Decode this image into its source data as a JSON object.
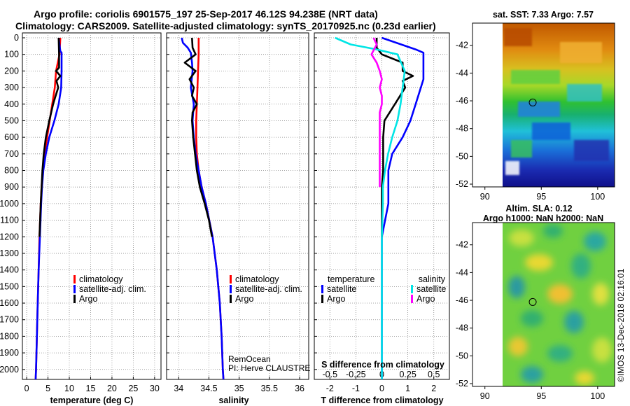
{
  "title_line1": "Argo profile: coriolis 6901575_197 25-Sep-2017 46.12S 94.238E (NRT data)",
  "title_line2": "Climatology: CARS2009. Satellite-adjusted climatology: synTS_20170925.nc (0.23d earlier)",
  "credit": "RemOcean",
  "pi_line": "PI: Herve CLAUSTRE",
  "watermark": "©IMOS 13-Dec-2018 02:16:01",
  "colors": {
    "climatology": "#ff0000",
    "satellite": "#0000ff",
    "argo": "#000000",
    "sat_salinity": "#00e5e5",
    "argo_salinity": "#ff00ff"
  },
  "depth_axis": {
    "ticks": [
      "0",
      "100",
      "200",
      "300",
      "400",
      "500",
      "600",
      "700",
      "800",
      "900",
      "1000",
      "1100",
      "1200",
      "1300",
      "1400",
      "1500",
      "1600",
      "1700",
      "1800",
      "1900",
      "2000"
    ],
    "range": [
      0,
      2060
    ]
  },
  "chart_data": [
    {
      "type": "line",
      "panel": "temperature",
      "xlabel": "temperature (deg C)",
      "ylabel": "depth",
      "xlim": [
        -1,
        31.5
      ],
      "xticks": [
        "0",
        "5",
        "10",
        "15",
        "20",
        "25",
        "30"
      ],
      "legend": {
        "climatology": "climatology",
        "satellite": "satellite-adj. clim.",
        "argo": "Argo"
      },
      "series": [
        {
          "name": "climatology",
          "depth": [
            0,
            100,
            200,
            300,
            400,
            500,
            600,
            700,
            800,
            900,
            1000,
            1200,
            1400,
            1600,
            1800,
            2000,
            2060
          ],
          "values": [
            7.9,
            7.7,
            6.9,
            6.6,
            6.0,
            5.4,
            4.8,
            4.2,
            3.8,
            3.5,
            3.3,
            3.0,
            2.8,
            2.6,
            2.4,
            2.2,
            2.1
          ]
        },
        {
          "name": "satellite-adj. clim.",
          "depth": [
            0,
            80,
            90,
            150,
            200,
            300,
            400,
            500,
            600,
            700,
            800,
            900,
            1000,
            1200,
            1400,
            1600,
            1800,
            2000,
            2060
          ],
          "values": [
            7.5,
            7.9,
            8.2,
            8.2,
            8.2,
            8.1,
            7.5,
            6.5,
            5.3,
            4.5,
            3.9,
            3.6,
            3.4,
            3.1,
            2.8,
            2.6,
            2.4,
            2.2,
            2.1
          ]
        },
        {
          "name": "Argo",
          "depth": [
            0,
            100,
            180,
            200,
            230,
            260,
            300,
            350,
            400,
            500,
            600,
            700,
            800,
            900,
            1000,
            1100,
            1200
          ],
          "values": [
            7.5,
            7.6,
            7.6,
            6.9,
            7.9,
            7.0,
            7.4,
            6.8,
            6.2,
            5.3,
            4.5,
            4.0,
            3.7,
            3.5,
            3.3,
            3.15,
            3.0
          ]
        }
      ]
    },
    {
      "type": "line",
      "panel": "salinity",
      "xlabel": "salinity",
      "ylabel": "depth",
      "xlim": [
        33.8,
        36.15
      ],
      "xticks": [
        "34",
        "34.5",
        "35",
        "35.5",
        "36"
      ],
      "legend": {
        "climatology": "climatology",
        "satellite": "satellite-adj. clim.",
        "argo": "Argo"
      },
      "series": [
        {
          "name": "climatology",
          "depth": [
            0,
            100,
            200,
            300,
            400,
            500,
            600,
            700,
            800,
            900,
            1000,
            1200,
            1400,
            1600,
            1800,
            2000,
            2060
          ],
          "values": [
            34.33,
            34.33,
            34.32,
            34.31,
            34.3,
            34.29,
            34.29,
            34.3,
            34.33,
            34.38,
            34.45,
            34.56,
            34.63,
            34.68,
            34.71,
            34.73,
            34.74
          ]
        },
        {
          "name": "satellite-adj. clim.",
          "depth": [
            0,
            30,
            60,
            90,
            150,
            200,
            300,
            400,
            500,
            600,
            700,
            800,
            900,
            1000,
            1200,
            1400,
            1600,
            1800,
            2000,
            2060
          ],
          "values": [
            34.05,
            34.07,
            34.15,
            34.2,
            34.22,
            34.23,
            34.2,
            34.25,
            34.23,
            34.25,
            34.28,
            34.33,
            34.38,
            34.45,
            34.56,
            34.63,
            34.68,
            34.71,
            34.73,
            34.74
          ]
        },
        {
          "name": "Argo",
          "depth": [
            0,
            60,
            100,
            150,
            200,
            250,
            300,
            350,
            400,
            450,
            500,
            600,
            700,
            800,
            900,
            1000,
            1100,
            1200
          ],
          "values": [
            34.22,
            34.23,
            34.28,
            34.1,
            34.28,
            34.18,
            34.25,
            34.22,
            34.3,
            34.23,
            34.22,
            34.24,
            34.27,
            34.3,
            34.35,
            34.43,
            34.5,
            34.55
          ]
        }
      ]
    },
    {
      "type": "line",
      "panel": "difference",
      "xlabel": "T difference from climatology",
      "xlabel_top": "S difference from climatology",
      "ylabel": "depth",
      "xlim": [
        -2.6,
        2.6
      ],
      "xticks": [
        "-2",
        "-1",
        "0",
        "1",
        "2"
      ],
      "xticks_top": [
        "-0.5",
        "-0.25",
        "0",
        "0.25",
        "0.5"
      ],
      "legend": {
        "temperature": "temperature",
        "salinity": "salinity",
        "satellite": "satellite",
        "argo": "Argo"
      },
      "series": [
        {
          "name": "T satellite",
          "depth": [
            0,
            70,
            90,
            150,
            200,
            250,
            300,
            400,
            500,
            600,
            700,
            800,
            900,
            1000,
            1200,
            1600,
            2060
          ],
          "values": [
            0.0,
            1.3,
            1.6,
            1.6,
            1.6,
            1.6,
            1.5,
            1.3,
            1.1,
            0.8,
            0.4,
            0.25,
            0.25,
            0.25,
            0.0,
            0.0,
            0.0
          ]
        },
        {
          "name": "T Argo",
          "depth": [
            0,
            60,
            100,
            150,
            200,
            230,
            260,
            300,
            350,
            400,
            500,
            600,
            700,
            800,
            900,
            1000,
            1200
          ],
          "values": [
            -0.2,
            -0.2,
            0.0,
            0.8,
            0.8,
            1.2,
            0.8,
            0.9,
            0.7,
            0.5,
            0.1,
            0.05,
            0.05,
            0.05,
            0.0,
            0.0,
            0.0
          ]
        },
        {
          "name": "S satellite",
          "depth": [
            0,
            40,
            70,
            100,
            200,
            300,
            400,
            500,
            600,
            700,
            800,
            900,
            1000,
            1200,
            1600,
            2060
          ],
          "values": [
            -0.45,
            -0.3,
            -0.05,
            0.15,
            0.22,
            0.2,
            0.18,
            0.15,
            0.1,
            0.06,
            0.03,
            0.01,
            0.01,
            0.0,
            0.0,
            0.0
          ]
        },
        {
          "name": "S Argo",
          "depth": [
            0,
            40,
            100,
            150,
            200,
            250,
            300,
            350,
            400,
            450,
            500,
            600,
            700,
            800,
            900
          ],
          "values": [
            -0.08,
            -0.05,
            -0.1,
            -0.05,
            -0.02,
            0.0,
            -0.02,
            0.0,
            0.0,
            -0.02,
            -0.02,
            -0.02,
            -0.02,
            -0.02,
            -0.02
          ]
        }
      ]
    }
  ],
  "map_sst": {
    "title": "sat. SST: 7.33 Argo: 7.57",
    "yticks": [
      "-42",
      "-44",
      "-46",
      "-48",
      "-50",
      "-52"
    ],
    "xticks": [
      "90",
      "95",
      "100"
    ],
    "lat_range": [
      -52.2,
      -40.4
    ],
    "lon_range": [
      88.9,
      101.5
    ],
    "argo_position": {
      "lat": -46.12,
      "lon": 94.24
    }
  },
  "map_sla": {
    "title1": "Altim. SLA: 0.12",
    "title2": "Argo h1000: NaN h2000: NaN",
    "yticks": [
      "-42",
      "-44",
      "-46",
      "-48",
      "-50",
      "-52"
    ],
    "xticks": [
      "90",
      "95",
      "100"
    ],
    "lat_range": [
      -52.2,
      -40.4
    ],
    "lon_range": [
      88.9,
      101.5
    ],
    "argo_position": {
      "lat": -46.12,
      "lon": 94.24
    }
  }
}
